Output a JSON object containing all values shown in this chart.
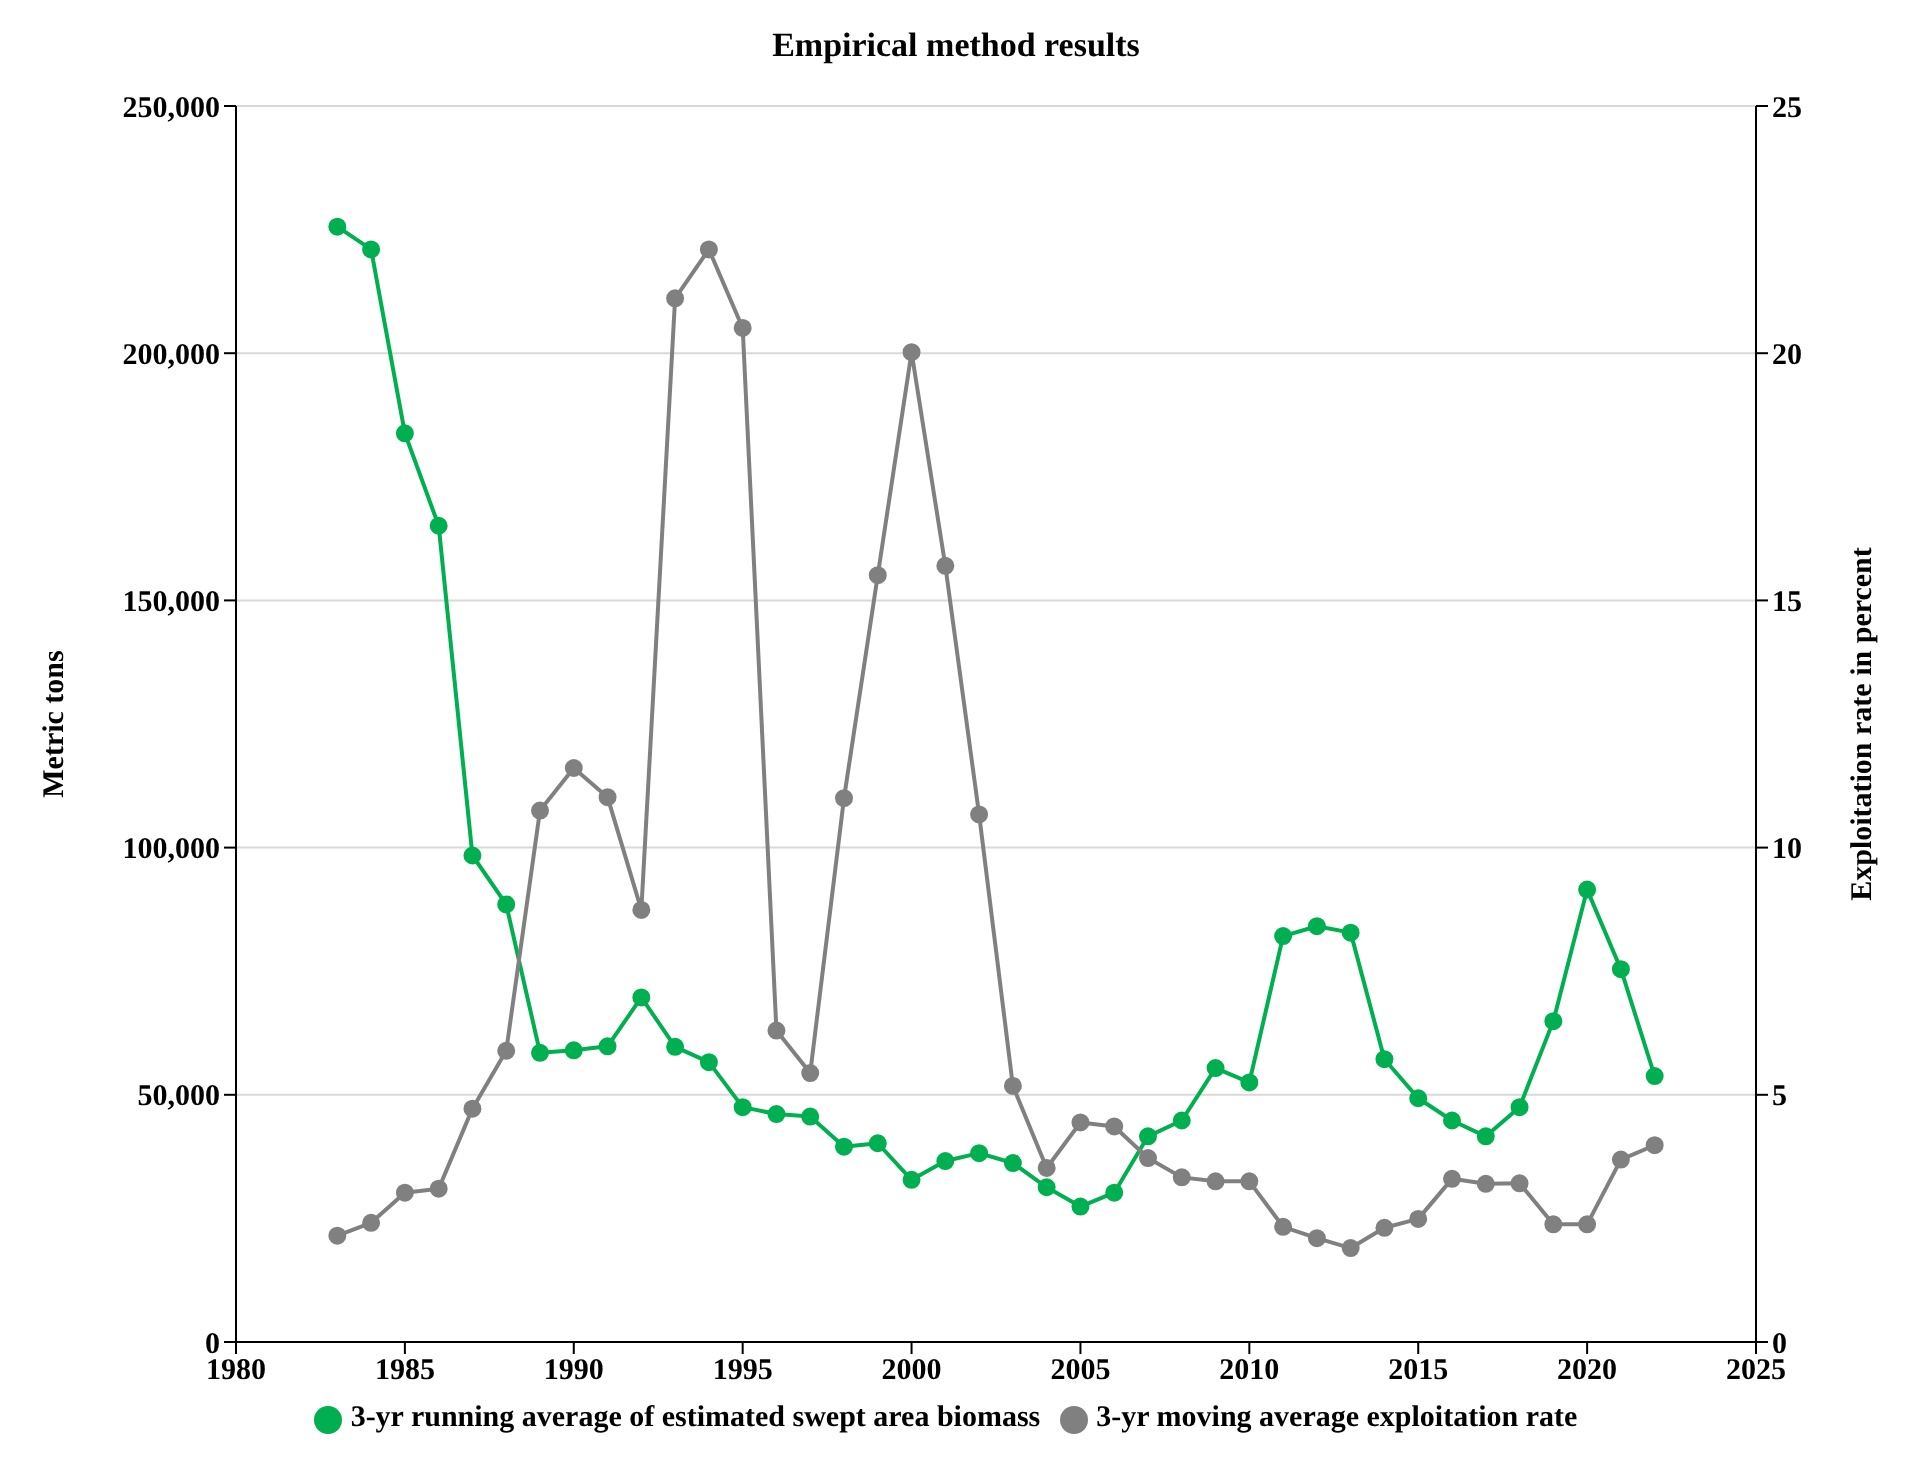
{
  "chart_data": {
    "type": "line",
    "title": "Empirical method results",
    "ylabel": "Metric tons",
    "y2label": "Exploitation rate in percent",
    "x": [
      1983,
      1984,
      1985,
      1986,
      1987,
      1988,
      1989,
      1990,
      1991,
      1992,
      1993,
      1994,
      1995,
      1996,
      1997,
      1998,
      1999,
      2000,
      2001,
      2002,
      2003,
      2004,
      2005,
      2006,
      2007,
      2008,
      2009,
      2010,
      2011,
      2012,
      2013,
      2014,
      2015,
      2016,
      2017,
      2018,
      2019,
      2020,
      2021,
      2022
    ],
    "series": [
      {
        "name": "3-yr running average of estimated swept area biomass",
        "color": "#00b050",
        "values": [
          225600,
          221000,
          183800,
          165100,
          98400,
          88500,
          58500,
          59000,
          59800,
          69700,
          59700,
          56600,
          47500,
          46100,
          45600,
          39500,
          40200,
          32800,
          36600,
          38200,
          36200,
          31300,
          27400,
          30200,
          41600,
          44800,
          55400,
          52500,
          82100,
          84100,
          82800,
          57200,
          49300,
          44800,
          41600,
          47500,
          64900,
          91500,
          75400,
          53800
        ]
      },
      {
        "name": "3-yr moving average exploitation rate",
        "color": "#808080",
        "axis": "y2",
        "values": [
          2.15,
          2.41,
          3.02,
          3.1,
          4.72,
          5.89,
          10.75,
          11.61,
          11.02,
          8.74,
          21.11,
          22.1,
          20.51,
          6.3,
          5.44,
          11.0,
          15.51,
          20.02,
          15.7,
          10.67,
          5.18,
          3.52,
          4.44,
          4.36,
          3.72,
          3.33,
          3.25,
          3.25,
          2.33,
          2.1,
          1.9,
          2.31,
          2.49,
          3.3,
          3.2,
          3.21,
          2.38,
          2.38,
          3.69,
          3.98
        ]
      }
    ],
    "xlim": [
      1980,
      2025
    ],
    "xticks": [
      1980,
      1985,
      1990,
      1995,
      2000,
      2005,
      2010,
      2015,
      2020,
      2025
    ],
    "ylim": [
      0,
      250000
    ],
    "yticks": [
      0,
      {
        "value": 50000,
        "label": "50,000"
      },
      {
        "value": 100000,
        "label": "100,000"
      },
      {
        "value": 150000,
        "label": "150,000"
      },
      {
        "value": 200000,
        "label": "200,000"
      },
      {
        "value": 250000,
        "label": "250,000"
      }
    ],
    "y2lim": [
      0,
      25
    ],
    "y2ticks": [
      0,
      5,
      10,
      15,
      20,
      25
    ],
    "grid": "y",
    "legend": "bottom",
    "marker": "circle",
    "line_style": "solid"
  }
}
